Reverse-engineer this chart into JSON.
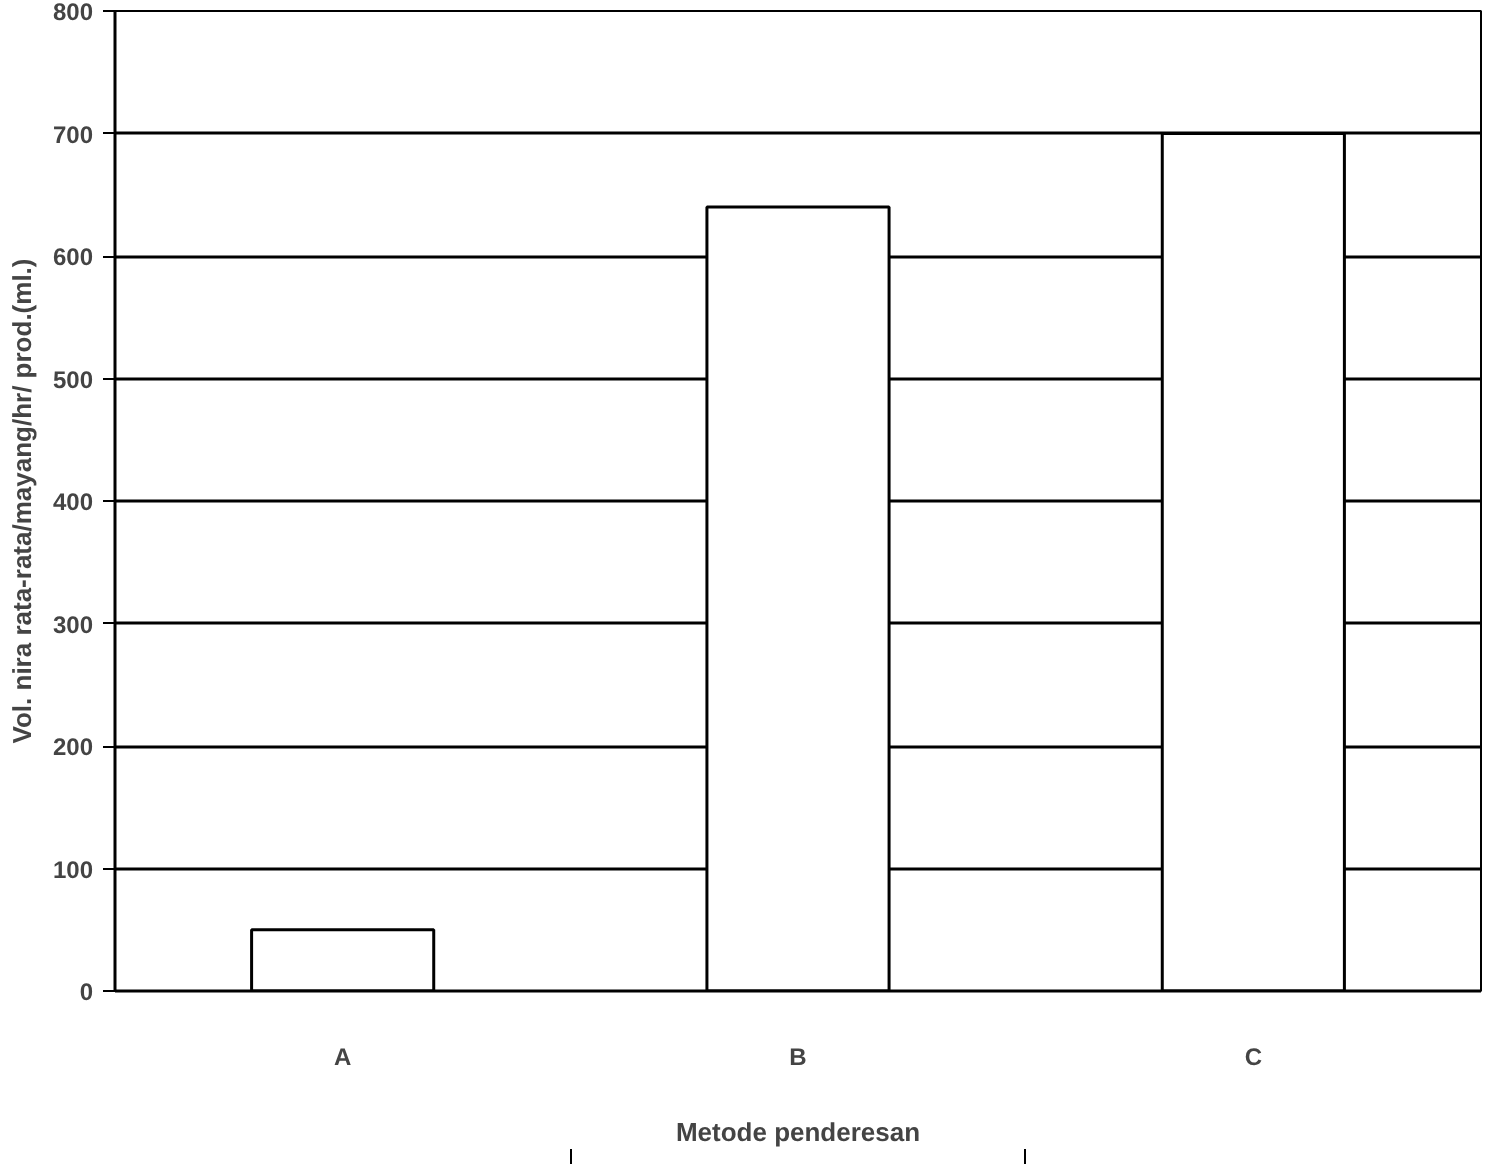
{
  "chart_data": {
    "type": "bar",
    "xlabel": "Metode penderesan",
    "ylabel": "Vol. nira rata-rata/mayang/hr/ prod.(ml.)",
    "categories": [
      "A",
      "B",
      "C"
    ],
    "values": [
      50,
      640,
      700
    ],
    "color": "#ffffff",
    "ylim": [
      0,
      800
    ],
    "yticks": [
      0,
      100,
      200,
      300,
      400,
      500,
      600,
      700,
      800
    ],
    "grid": "y"
  }
}
